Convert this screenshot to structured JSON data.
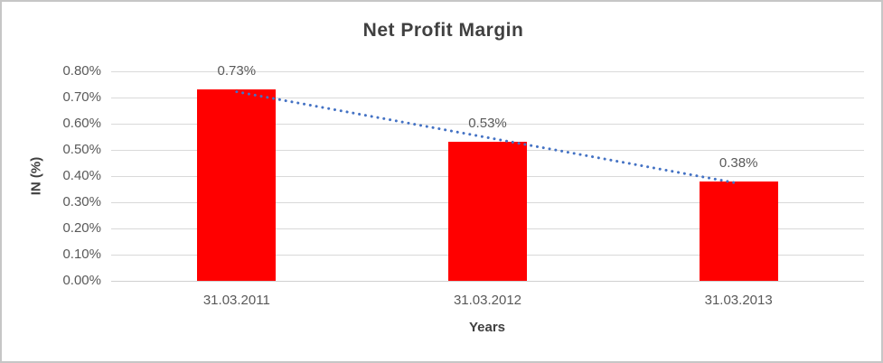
{
  "chart_data": {
    "type": "bar",
    "title": "Net Profit Margin",
    "categories": [
      "31.03.2011",
      "31.03.2012",
      "31.03.2013"
    ],
    "values": [
      0.73,
      0.53,
      0.38
    ],
    "data_labels": [
      "0.73%",
      "0.53%",
      "0.38%"
    ],
    "xlabel": "Years",
    "ylabel": "IN (%)",
    "ylim": [
      0,
      0.8
    ],
    "ytick_step": 0.1,
    "ytick_labels": [
      "0.00%",
      "0.10%",
      "0.20%",
      "0.30%",
      "0.40%",
      "0.50%",
      "0.60%",
      "0.70%",
      "0.80%"
    ],
    "grid": true,
    "legend_position": "none",
    "colors": {
      "bar": "#ff0000",
      "trendline": "#4472c4",
      "gridline": "#d9d9d9",
      "title_text": "#404040",
      "tick_text": "#595959"
    },
    "trendline": {
      "type": "linear",
      "style": "dotted",
      "start_value": 0.722,
      "end_value": 0.372
    }
  }
}
